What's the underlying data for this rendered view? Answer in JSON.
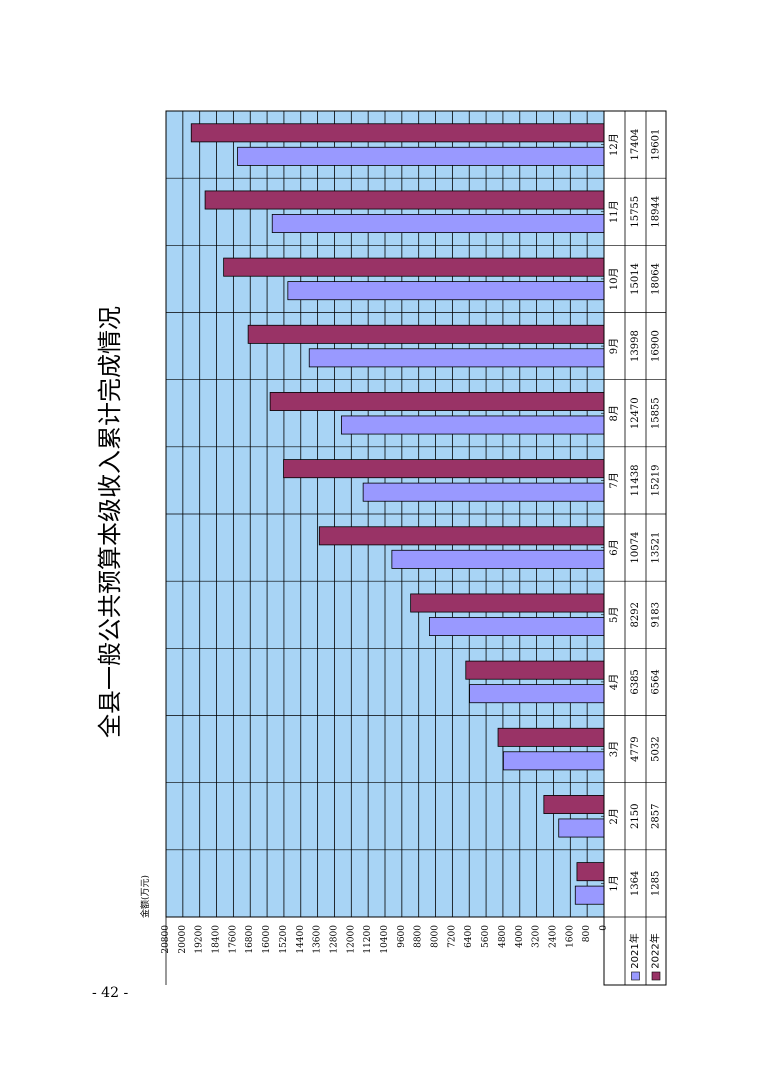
{
  "page_number": "- 42 -",
  "colors": {
    "plot_background": "#a8d4f5",
    "series_2021": "#9999ff",
    "series_2022": "#993366",
    "gridline": "#000000"
  },
  "chart_data": {
    "type": "bar",
    "title": "全县一般公共预算本级收入累计完成情况",
    "ylabel": "金额(万元)",
    "xlabel": "",
    "categories": [
      "1月",
      "2月",
      "3月",
      "4月",
      "5月",
      "6月",
      "7月",
      "8月",
      "9月",
      "10月",
      "11月",
      "12月"
    ],
    "series": [
      {
        "name": "2021年",
        "values": [
          1364,
          2150,
          4779,
          6385,
          8292,
          10074,
          11438,
          12470,
          13998,
          15014,
          15755,
          17404
        ]
      },
      {
        "name": "2022年",
        "values": [
          1285,
          2857,
          5032,
          6564,
          9183,
          13521,
          15219,
          15855,
          16900,
          18064,
          18944,
          19601
        ]
      }
    ],
    "yticks": [
      0,
      800,
      1600,
      2400,
      3200,
      4000,
      4800,
      5600,
      6400,
      7200,
      8000,
      8800,
      9600,
      10400,
      11200,
      12000,
      12800,
      13600,
      14400,
      15200,
      16000,
      16800,
      17600,
      18400,
      19200,
      20000,
      20800
    ],
    "ylim": [
      0,
      20800
    ],
    "grid": true,
    "legend": "data-table",
    "orientation": "rotated 90° counter-clockwise"
  }
}
